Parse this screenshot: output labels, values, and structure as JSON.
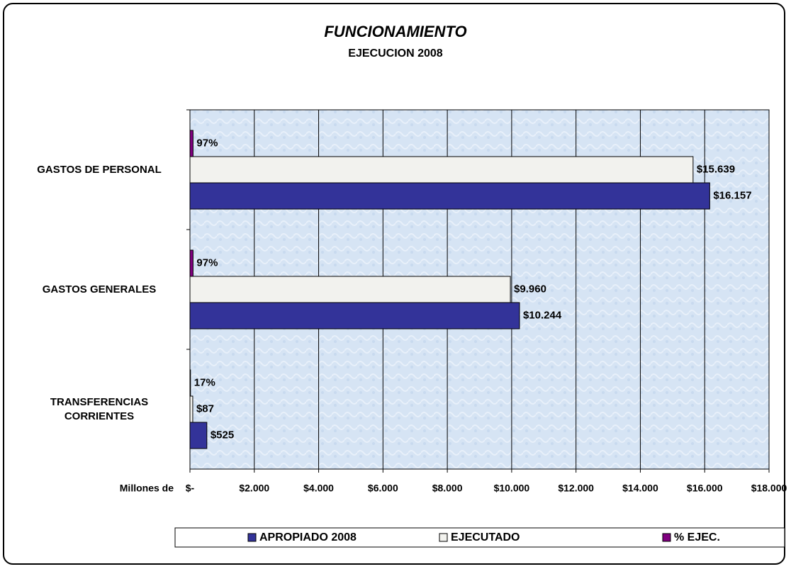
{
  "chart_data": {
    "type": "barh",
    "title": "FUNCIONAMIENTO",
    "subtitle": "EJECUCION 2008",
    "x_label": "Millones de",
    "categories": [
      "GASTOS DE PERSONAL",
      "GASTOS GENERALES",
      "TRANSFERENCIAS CORRIENTES"
    ],
    "series": [
      {
        "name": "APROPIADO 2008",
        "color": "#333399",
        "values": [
          16157,
          10244,
          525
        ],
        "value_labels": [
          "$16.157",
          "$10.244",
          "$525"
        ]
      },
      {
        "name": "EJECUTADO",
        "color": "#f2f2ee",
        "values": [
          15639,
          9960,
          87
        ],
        "value_labels": [
          "$15.639",
          "$9.960",
          "$87"
        ]
      },
      {
        "name": "% EJEC.",
        "color": "#800080",
        "values": [
          97,
          97,
          17
        ],
        "value_labels": [
          "97%",
          "97%",
          "17%"
        ]
      }
    ],
    "xlim": [
      0,
      18000
    ],
    "xticks": [
      {
        "value": 0,
        "label": "$-"
      },
      {
        "value": 2000,
        "label": "$2.000"
      },
      {
        "value": 4000,
        "label": "$4.000"
      },
      {
        "value": 6000,
        "label": "$6.000"
      },
      {
        "value": 8000,
        "label": "$8.000"
      },
      {
        "value": 10000,
        "label": "$10.000"
      },
      {
        "value": 12000,
        "label": "$12.000"
      },
      {
        "value": 14000,
        "label": "$14.000"
      },
      {
        "value": 16000,
        "label": "$16.000"
      },
      {
        "value": 18000,
        "label": "$18.000"
      }
    ],
    "grid": true,
    "legend": "bottom"
  }
}
